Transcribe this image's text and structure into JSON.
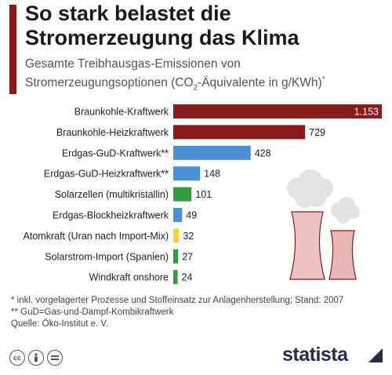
{
  "header": {
    "title": "So stark belastet die Stromerzeugung das Klima",
    "subtitle_part1": "Gesamte Treibhausgas-Emissionen von Stromerzeugungsoptionen (CO",
    "subtitle_sub": "2",
    "subtitle_part2": "-Äquivalente in g/KWh)",
    "subtitle_sup": "*"
  },
  "chart_data": {
    "type": "bar",
    "orientation": "horizontal",
    "categories": [
      "Braunkohle-Kraftwerk",
      "Braunkohle-Heizkraftwerk",
      "Erdgas-GuD-Kraftwerk**",
      "Erdgas-GuD-Heizkraftwerk**",
      "Solarzellen (multikristallin)",
      "Erdgas-Blockheizkraftwerk",
      "Atomkraft (Uran nach Import-Mix)",
      "Solarstrom-Import (Spanien)",
      "Windkraft onshore"
    ],
    "values": [
      1153,
      729,
      428,
      148,
      101,
      49,
      32,
      27,
      24
    ],
    "value_labels": [
      "1.153",
      "729",
      "428",
      "148",
      "101",
      "49",
      "32",
      "27",
      "24"
    ],
    "colors": [
      "#8b1a1a",
      "#8b1a1a",
      "#4a90d9",
      "#4a90d9",
      "#2e9e3e",
      "#4a90d9",
      "#f2d43a",
      "#2e9e3e",
      "#2e9e3e"
    ],
    "xlim": [
      0,
      1153
    ],
    "grid": false,
    "legend": "none"
  },
  "footnotes": [
    "*  inkl. vorgelagerter Prozesse und Stoffeinsatz zur Anlagenherstellung; Stand: 2007",
    "** GuD=Gas-und-Dampf-Kombikraftwerk",
    "Quelle: Öko-Institut e. V."
  ],
  "license_icons": [
    "cc-icon",
    "by-icon",
    "nd-icon"
  ],
  "brand": {
    "name": "statista",
    "color": "#1f2e4d"
  }
}
